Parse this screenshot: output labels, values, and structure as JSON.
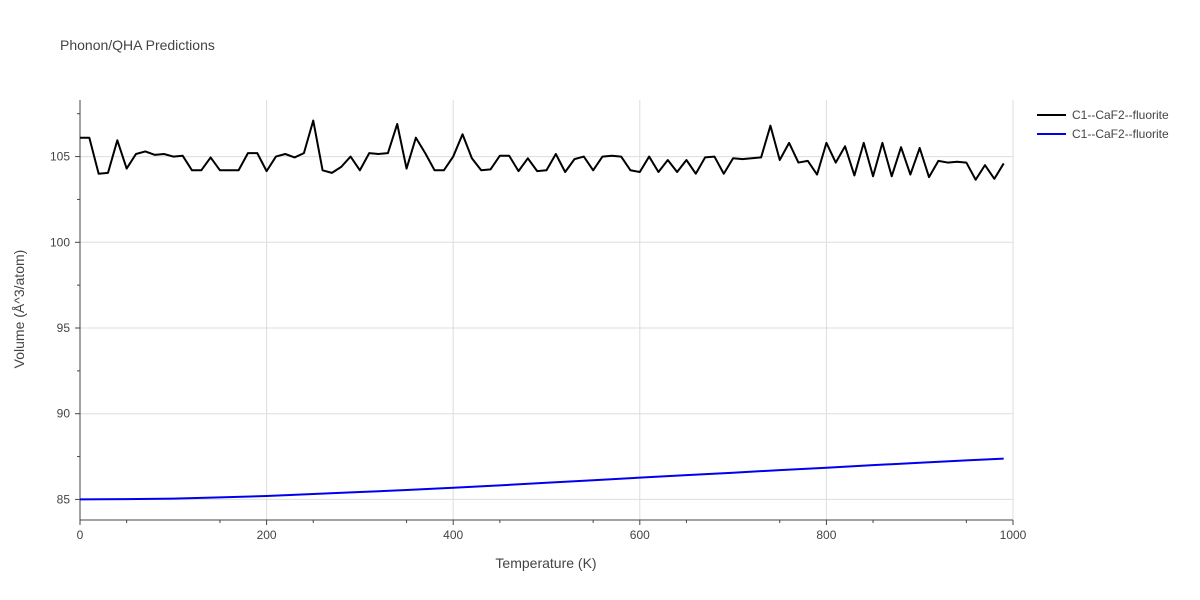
{
  "chart_data": {
    "type": "line",
    "title": "Phonon/QHA Predictions",
    "xlabel": "Temperature (K)",
    "ylabel": "Volume (Å^3/atom)",
    "xlim": [
      0,
      1000
    ],
    "ylim": [
      83.8,
      108.3
    ],
    "xticks": [
      0,
      200,
      400,
      600,
      800,
      1000
    ],
    "yticks": [
      85,
      90,
      95,
      100,
      105
    ],
    "grid": true,
    "legend_position": "top-right",
    "series": [
      {
        "name": "C1--CaF2--fluorite",
        "color": "#000000",
        "x": [
          0,
          10,
          20,
          30,
          40,
          50,
          60,
          70,
          80,
          90,
          100,
          110,
          120,
          130,
          140,
          150,
          160,
          170,
          180,
          190,
          200,
          210,
          220,
          230,
          240,
          250,
          260,
          270,
          280,
          290,
          300,
          310,
          320,
          330,
          340,
          350,
          360,
          370,
          380,
          390,
          400,
          410,
          420,
          430,
          440,
          450,
          460,
          470,
          480,
          490,
          500,
          510,
          520,
          530,
          540,
          550,
          560,
          570,
          580,
          590,
          600,
          610,
          620,
          630,
          640,
          650,
          660,
          670,
          680,
          690,
          700,
          710,
          720,
          730,
          740,
          750,
          760,
          770,
          780,
          790,
          800,
          810,
          820,
          830,
          840,
          850,
          860,
          870,
          880,
          890,
          900,
          910,
          920,
          930,
          940,
          950,
          960,
          970,
          980,
          990
        ],
        "y": [
          106.1,
          106.1,
          104.0,
          104.05,
          105.95,
          104.3,
          105.15,
          105.3,
          105.1,
          105.15,
          105.0,
          105.05,
          104.2,
          104.2,
          104.95,
          104.2,
          104.2,
          104.2,
          105.2,
          105.2,
          104.15,
          105.0,
          105.15,
          104.95,
          105.2,
          107.1,
          104.2,
          104.05,
          104.4,
          105.0,
          104.2,
          105.2,
          105.15,
          105.2,
          106.9,
          104.3,
          106.1,
          105.2,
          104.2,
          104.2,
          105.0,
          106.3,
          104.9,
          104.2,
          104.25,
          105.05,
          105.05,
          104.15,
          104.9,
          104.15,
          104.2,
          105.15,
          104.1,
          104.85,
          105.0,
          104.2,
          105.0,
          105.05,
          105.0,
          104.2,
          104.1,
          105.0,
          104.1,
          104.8,
          104.1,
          104.8,
          104.0,
          104.95,
          105.0,
          104.0,
          104.9,
          104.85,
          104.9,
          104.95,
          106.8,
          104.8,
          105.8,
          104.65,
          104.75,
          103.95,
          105.8,
          104.65,
          105.6,
          103.9,
          105.8,
          103.85,
          105.8,
          103.85,
          105.55,
          103.95,
          105.5,
          103.8,
          104.75,
          104.65,
          104.7,
          104.65,
          103.65,
          104.5,
          103.7,
          104.6
        ]
      },
      {
        "name": "C1--CaF2--fluorite",
        "color": "#0000ee",
        "x": [
          0,
          50,
          100,
          150,
          200,
          250,
          300,
          350,
          400,
          450,
          500,
          550,
          600,
          650,
          700,
          750,
          800,
          850,
          900,
          950,
          990
        ],
        "y": [
          85.0,
          85.02,
          85.05,
          85.12,
          85.2,
          85.32,
          85.43,
          85.55,
          85.68,
          85.82,
          85.97,
          86.12,
          86.27,
          86.42,
          86.56,
          86.71,
          86.85,
          87.0,
          87.14,
          87.28,
          87.38
        ]
      }
    ]
  }
}
